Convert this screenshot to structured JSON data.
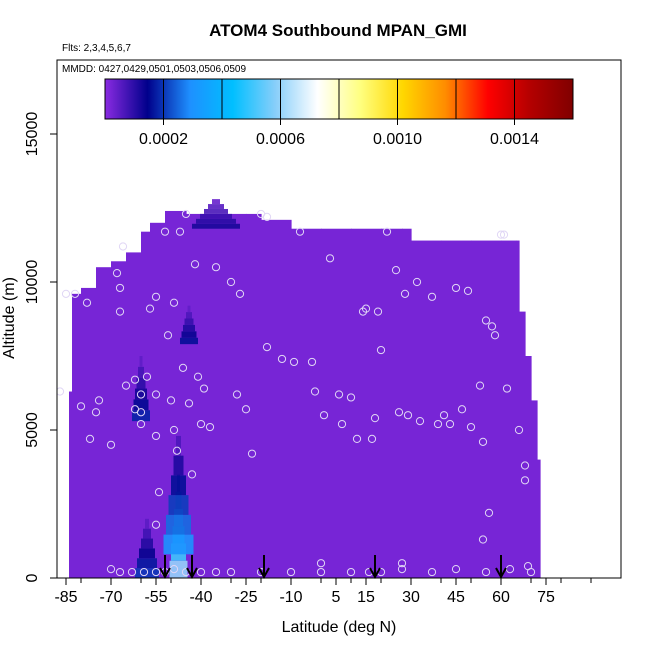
{
  "chart_data": {
    "type": "heatmap",
    "title": "ATOM4 Southbound MPAN_GMI",
    "subtitle_flights": "Flts: 2,3,4,5,6,7",
    "subtitle_dates": "MMDD: 0427,0429,0501,0503,0506,0509",
    "xlabel": "Latitude (deg N)",
    "ylabel": "Altitude (m)",
    "xlim": [
      -88,
      100
    ],
    "ylim": [
      0,
      17500
    ],
    "x_ticks": [
      -85,
      -70,
      -55,
      -40,
      -25,
      -10,
      5,
      15,
      30,
      45,
      60,
      75
    ],
    "y_ticks": [
      0,
      5000,
      10000,
      15000
    ],
    "colorbar": {
      "min": 0.0,
      "max": 0.0016,
      "ticks": [
        0.0002,
        0.0006,
        0.001,
        0.0014
      ],
      "tick_labels": [
        "0.0002",
        "0.0006",
        "0.0010",
        "0.0014"
      ],
      "colors": [
        "#8a2be2",
        "#00008b",
        "#1e90ff",
        "#00bfff",
        "#87cefa",
        "#ffffff",
        "#ffff80",
        "#ffd700",
        "#ff8c00",
        "#ff0000",
        "#b30000",
        "#800000"
      ]
    },
    "background_value": 2e-05,
    "envelope": [
      [
        -84,
        0,
        6300
      ],
      [
        -83,
        0,
        9600
      ],
      [
        -80,
        0,
        9800
      ],
      [
        -75,
        0,
        10500
      ],
      [
        -70,
        0,
        10700
      ],
      [
        -65,
        0,
        11000
      ],
      [
        -60,
        0,
        11700
      ],
      [
        -57,
        0,
        12000
      ],
      [
        -52,
        0,
        12400
      ],
      [
        -45,
        0,
        12300
      ],
      [
        -35,
        0,
        12300
      ],
      [
        -25,
        0,
        12300
      ],
      [
        -20,
        0,
        12100
      ],
      [
        -10,
        0,
        11800
      ],
      [
        0,
        0,
        11800
      ],
      [
        10,
        0,
        11800
      ],
      [
        20,
        0,
        11800
      ],
      [
        27,
        0,
        11800
      ],
      [
        30,
        0,
        11400
      ],
      [
        40,
        0,
        11400
      ],
      [
        50,
        0,
        11400
      ],
      [
        60,
        0,
        11400
      ],
      [
        65,
        0,
        11400
      ],
      [
        66,
        0,
        9000
      ],
      [
        68,
        0,
        7500
      ],
      [
        70,
        0,
        6000
      ],
      [
        72,
        0,
        4000
      ],
      [
        73,
        0,
        0
      ]
    ],
    "features": [
      {
        "lat": -47.5,
        "alt": 0,
        "radius_deg": 3,
        "height": 3500,
        "value": 0.0006
      },
      {
        "lat": -47.5,
        "alt": 800,
        "radius_deg": 5,
        "height": 4000,
        "value": 0.0003
      },
      {
        "lat": -58,
        "alt": 0,
        "radius_deg": 4,
        "height": 2000,
        "value": 0.0002
      },
      {
        "lat": -60,
        "alt": 5300,
        "radius_deg": 3,
        "height": 2200,
        "value": 0.00018
      },
      {
        "lat": -44,
        "alt": 7900,
        "radius_deg": 3,
        "height": 1300,
        "value": 0.00016
      },
      {
        "lat": -35,
        "alt": 11800,
        "radius_deg": 8,
        "height": 1000,
        "value": 0.00012
      }
    ],
    "observations": [
      [
        -87,
        6300
      ],
      [
        -85,
        9600
      ],
      [
        -82,
        9600
      ],
      [
        -80,
        5800
      ],
      [
        -78,
        9300
      ],
      [
        -77,
        4700
      ],
      [
        -75,
        5600
      ],
      [
        -74,
        6000
      ],
      [
        -70,
        4500
      ],
      [
        -68,
        10300
      ],
      [
        -67,
        9800
      ],
      [
        -67,
        9000
      ],
      [
        -66,
        11200
      ],
      [
        -65,
        6500
      ],
      [
        -62,
        5700
      ],
      [
        -62,
        6700
      ],
      [
        -60,
        5200
      ],
      [
        -60,
        5600
      ],
      [
        -60,
        6200
      ],
      [
        -58,
        6800
      ],
      [
        -57,
        9100
      ],
      [
        -55,
        9500
      ],
      [
        -55,
        6200
      ],
      [
        -55,
        4800
      ],
      [
        -55,
        1800
      ],
      [
        -54,
        2900
      ],
      [
        -52,
        11700
      ],
      [
        -51,
        8200
      ],
      [
        -50,
        6000
      ],
      [
        -49,
        9300
      ],
      [
        -47,
        11700
      ],
      [
        -46,
        7100
      ],
      [
        -45,
        12300
      ],
      [
        -44,
        5900
      ],
      [
        -43,
        3500
      ],
      [
        -42,
        10600
      ],
      [
        -41,
        6800
      ],
      [
        -40,
        5200
      ],
      [
        -39,
        6400
      ],
      [
        -37,
        5100
      ],
      [
        -35,
        10500
      ],
      [
        -30,
        10000
      ],
      [
        -28,
        6200
      ],
      [
        -27,
        9600
      ],
      [
        -25,
        5700
      ],
      [
        -23,
        4200
      ],
      [
        -20,
        12300
      ],
      [
        -18,
        12200
      ],
      [
        -18,
        7800
      ],
      [
        -13,
        7400
      ],
      [
        -9,
        7300
      ],
      [
        -7,
        11700
      ],
      [
        -3,
        7300
      ],
      [
        -2,
        6300
      ],
      [
        1,
        5500
      ],
      [
        3,
        10800
      ],
      [
        6,
        6200
      ],
      [
        7,
        5200
      ],
      [
        10,
        6100
      ],
      [
        12,
        4700
      ],
      [
        14,
        9000
      ],
      [
        15,
        9100
      ],
      [
        17,
        4700
      ],
      [
        18,
        5400
      ],
      [
        19,
        9000
      ],
      [
        20,
        7700
      ],
      [
        22,
        11700
      ],
      [
        25,
        10400
      ],
      [
        26,
        5600
      ],
      [
        28,
        9600
      ],
      [
        29,
        5500
      ],
      [
        32,
        10000
      ],
      [
        33,
        5300
      ],
      [
        37,
        9500
      ],
      [
        39,
        5200
      ],
      [
        41,
        5500
      ],
      [
        43,
        5200
      ],
      [
        45,
        9800
      ],
      [
        47,
        5700
      ],
      [
        49,
        9700
      ],
      [
        50,
        5100
      ],
      [
        53,
        6500
      ],
      [
        54,
        4600
      ],
      [
        54,
        1300
      ],
      [
        55,
        8700
      ],
      [
        56,
        2200
      ],
      [
        57,
        8500
      ],
      [
        58,
        8200
      ],
      [
        60,
        11600
      ],
      [
        61,
        11600
      ],
      [
        62,
        6400
      ],
      [
        66,
        5000
      ],
      [
        68,
        3800
      ],
      [
        68,
        3300
      ],
      [
        69,
        400
      ],
      [
        70,
        200
      ],
      [
        -48,
        4300
      ],
      [
        -49,
        5000
      ],
      [
        -70,
        300
      ],
      [
        -67,
        200
      ],
      [
        -63,
        200
      ],
      [
        -59,
        200
      ],
      [
        -55,
        200
      ],
      [
        -52,
        200
      ],
      [
        -49,
        300
      ],
      [
        -45,
        200
      ],
      [
        -40,
        200
      ],
      [
        -35,
        200
      ],
      [
        -30,
        200
      ],
      [
        -20,
        200
      ],
      [
        -10,
        200
      ],
      [
        0,
        200
      ],
      [
        0,
        500
      ],
      [
        10,
        200
      ],
      [
        16,
        200
      ],
      [
        20,
        200
      ],
      [
        27,
        300
      ],
      [
        27,
        500
      ],
      [
        37,
        200
      ],
      [
        45,
        300
      ],
      [
        55,
        200
      ],
      [
        63,
        300
      ]
    ],
    "arrows_lat": [
      -52,
      -43,
      -19,
      18,
      60
    ]
  }
}
